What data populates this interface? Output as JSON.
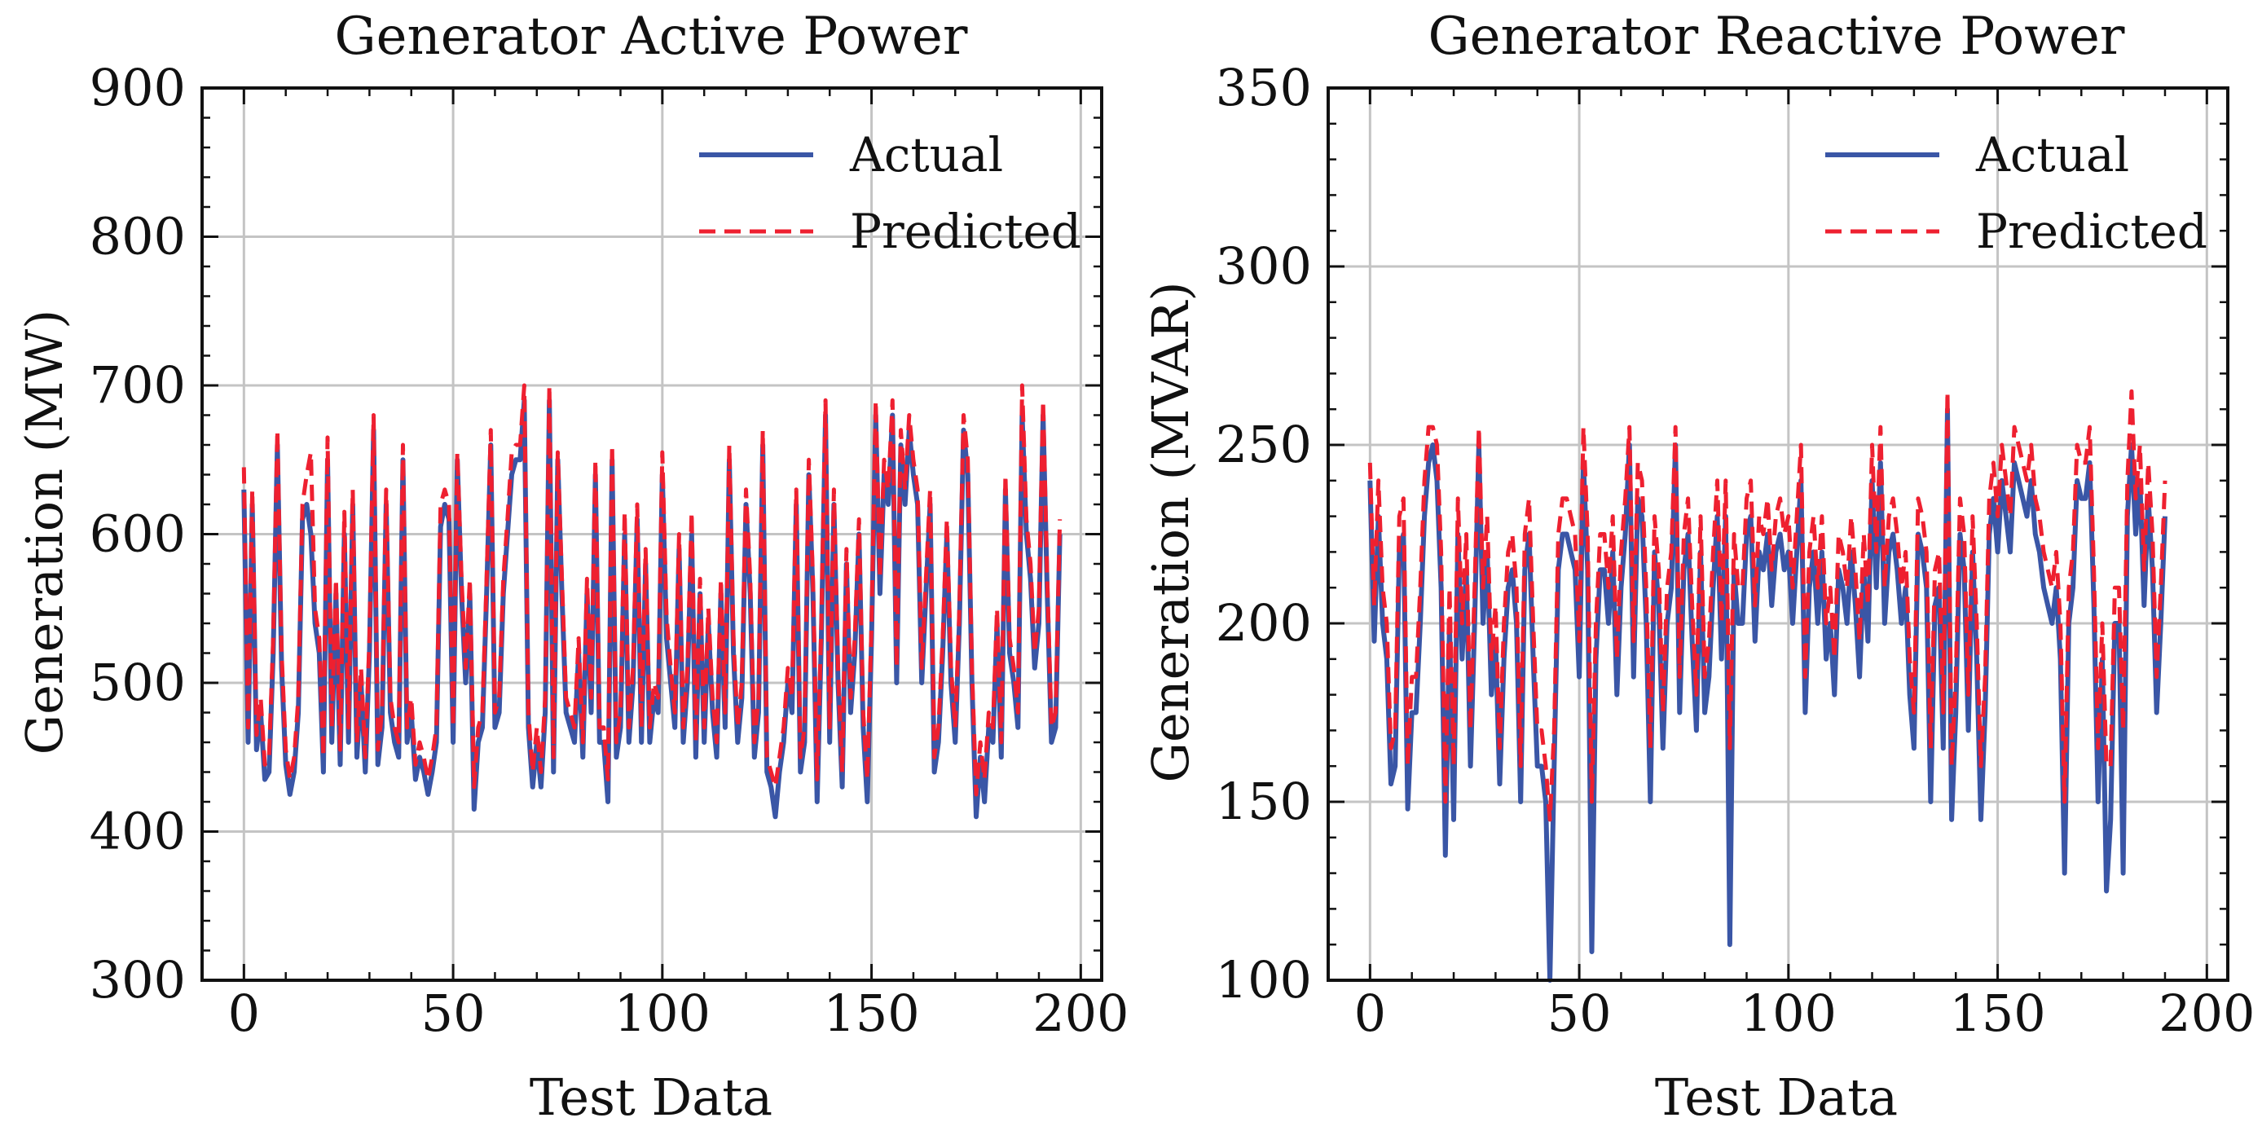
{
  "colors": {
    "actual": "#3a56a6",
    "predicted": "#ee2030",
    "grid": "#c4c4c4",
    "axis": "#111111"
  },
  "chart_data": [
    {
      "type": "line",
      "title": "Generator Active Power",
      "xlabel": "Test Data",
      "ylabel": "Generation (MW)",
      "xlim": [
        -10,
        205
      ],
      "ylim": [
        300,
        900
      ],
      "xticks": [
        0,
        50,
        100,
        150,
        200
      ],
      "yticks": [
        300,
        400,
        500,
        600,
        700,
        800,
        900
      ],
      "xtick_labels": [
        "0",
        "50",
        "100",
        "150",
        "200"
      ],
      "ytick_labels": [
        "300",
        "400",
        "500",
        "600",
        "700",
        "800",
        "900"
      ],
      "grid": true,
      "legend_position": "top-right",
      "legend": [
        "Actual",
        "Predicted"
      ],
      "series": [
        {
          "name": "Actual",
          "style": "solid",
          "values": [
            630,
            460,
            620,
            455,
            480,
            435,
            440,
            520,
            660,
            510,
            445,
            425,
            440,
            480,
            610,
            620,
            600,
            540,
            520,
            440,
            650,
            460,
            560,
            445,
            600,
            460,
            620,
            450,
            500,
            440,
            520,
            670,
            445,
            470,
            620,
            480,
            460,
            450,
            650,
            460,
            480,
            435,
            450,
            440,
            425,
            440,
            460,
            605,
            620,
            610,
            460,
            650,
            560,
            500,
            560,
            415,
            460,
            470,
            560,
            660,
            470,
            480,
            560,
            600,
            640,
            650,
            650,
            690,
            470,
            430,
            460,
            430,
            480,
            690,
            440,
            650,
            560,
            480,
            470,
            460,
            520,
            450,
            560,
            480,
            640,
            460,
            460,
            420,
            650,
            450,
            470,
            600,
            460,
            500,
            610,
            460,
            580,
            460,
            490,
            480,
            640,
            530,
            500,
            470,
            590,
            460,
            500,
            600,
            450,
            560,
            460,
            540,
            480,
            450,
            560,
            470,
            650,
            520,
            460,
            490,
            620,
            560,
            450,
            480,
            660,
            440,
            430,
            410,
            440,
            460,
            500,
            480,
            620,
            440,
            460,
            640,
            560,
            420,
            530,
            680,
            460,
            620,
            500,
            430,
            580,
            480,
            520,
            600,
            470,
            420,
            530,
            680,
            560,
            640,
            620,
            680,
            500,
            660,
            620,
            670,
            640,
            620,
            500,
            560,
            620,
            440,
            460,
            520,
            600,
            500,
            460,
            540,
            670,
            640,
            500,
            410,
            450,
            420,
            470,
            460,
            540,
            450,
            630,
            520,
            500,
            470,
            680,
            600,
            570,
            510,
            540,
            680,
            560,
            460,
            470,
            600
          ],
          "values_note": "estimated readings"
        },
        {
          "name": "Predicted",
          "style": "dashed",
          "values": [
            645,
            470,
            630,
            465,
            490,
            445,
            450,
            530,
            670,
            520,
            455,
            435,
            450,
            490,
            620,
            640,
            655,
            550,
            530,
            450,
            665,
            470,
            570,
            455,
            615,
            470,
            630,
            460,
            510,
            450,
            530,
            680,
            455,
            480,
            630,
            490,
            470,
            460,
            660,
            470,
            490,
            445,
            460,
            450,
            435,
            450,
            470,
            620,
            630,
            620,
            470,
            655,
            570,
            510,
            570,
            430,
            470,
            480,
            570,
            670,
            480,
            490,
            570,
            610,
            655,
            660,
            660,
            700,
            480,
            440,
            470,
            440,
            490,
            700,
            450,
            655,
            570,
            490,
            480,
            470,
            530,
            460,
            570,
            490,
            650,
            470,
            470,
            435,
            660,
            460,
            480,
            615,
            470,
            510,
            620,
            470,
            590,
            470,
            500,
            490,
            655,
            545,
            510,
            480,
            600,
            470,
            510,
            615,
            460,
            570,
            470,
            550,
            490,
            460,
            570,
            480,
            660,
            530,
            470,
            500,
            630,
            570,
            460,
            490,
            670,
            450,
            440,
            430,
            450,
            470,
            510,
            490,
            630,
            450,
            470,
            650,
            570,
            435,
            540,
            690,
            470,
            630,
            510,
            440,
            590,
            490,
            530,
            610,
            480,
            435,
            540,
            690,
            570,
            650,
            630,
            690,
            510,
            670,
            630,
            680,
            650,
            630,
            510,
            570,
            630,
            450,
            470,
            530,
            610,
            510,
            470,
            550,
            680,
            650,
            510,
            425,
            460,
            435,
            480,
            470,
            550,
            460,
            640,
            530,
            510,
            480,
            700,
            610,
            580,
            520,
            550,
            690,
            570,
            470,
            480,
            610
          ]
        }
      ]
    },
    {
      "type": "line",
      "title": "Generator Reactive Power",
      "xlabel": "Test Data",
      "ylabel": "Generation (MVAR)",
      "xlim": [
        -10,
        205
      ],
      "ylim": [
        100,
        350
      ],
      "xticks": [
        0,
        50,
        100,
        150,
        200
      ],
      "yticks": [
        100,
        150,
        200,
        250,
        300,
        350
      ],
      "xtick_labels": [
        "0",
        "50",
        "100",
        "150",
        "200"
      ],
      "ytick_labels": [
        "100",
        "150",
        "200",
        "250",
        "300",
        "350"
      ],
      "grid": true,
      "legend_position": "top-right",
      "legend": [
        "Actual",
        "Predicted"
      ],
      "series": [
        {
          "name": "Actual",
          "style": "solid",
          "values": [
            240,
            195,
            230,
            200,
            190,
            155,
            160,
            220,
            225,
            148,
            175,
            175,
            200,
            230,
            245,
            250,
            240,
            210,
            135,
            200,
            145,
            225,
            190,
            215,
            160,
            200,
            250,
            200,
            220,
            180,
            195,
            155,
            190,
            210,
            215,
            200,
            150,
            215,
            225,
            190,
            160,
            160,
            150,
            100,
            160,
            215,
            225,
            225,
            220,
            215,
            185,
            245,
            215,
            108,
            190,
            215,
            215,
            200,
            220,
            180,
            210,
            225,
            250,
            185,
            235,
            230,
            200,
            150,
            220,
            205,
            165,
            200,
            210,
            250,
            175,
            215,
            225,
            195,
            170,
            220,
            175,
            185,
            210,
            230,
            190,
            230,
            110,
            215,
            200,
            200,
            225,
            230,
            195,
            220,
            215,
            225,
            205,
            220,
            225,
            215,
            220,
            200,
            220,
            240,
            175,
            210,
            220,
            200,
            220,
            190,
            200,
            180,
            215,
            210,
            200,
            220,
            205,
            185,
            215,
            195,
            240,
            210,
            245,
            200,
            220,
            225,
            215,
            200,
            210,
            180,
            165,
            225,
            220,
            210,
            150,
            205,
            210,
            165,
            260,
            145,
            175,
            225,
            215,
            170,
            220,
            190,
            145,
            175,
            225,
            235,
            220,
            240,
            230,
            220,
            245,
            240,
            235,
            230,
            240,
            225,
            220,
            210,
            205,
            200,
            210,
            190,
            130,
            200,
            210,
            240,
            235,
            235,
            245,
            205,
            150,
            190,
            125,
            145,
            200,
            200,
            130,
            230,
            250,
            225,
            240,
            205,
            235,
            215,
            175,
            200,
            230
          ],
          "values_note": "estimated readings"
        },
        {
          "name": "Predicted",
          "style": "dashed",
          "values": [
            245,
            205,
            240,
            210,
            200,
            165,
            170,
            230,
            235,
            160,
            185,
            185,
            210,
            240,
            255,
            255,
            250,
            220,
            150,
            210,
            160,
            235,
            200,
            225,
            170,
            210,
            255,
            210,
            230,
            190,
            205,
            165,
            200,
            220,
            225,
            210,
            160,
            225,
            235,
            200,
            170,
            170,
            160,
            145,
            170,
            225,
            235,
            235,
            230,
            225,
            195,
            255,
            225,
            150,
            200,
            225,
            225,
            210,
            230,
            190,
            220,
            235,
            255,
            195,
            245,
            240,
            210,
            165,
            230,
            215,
            175,
            210,
            220,
            255,
            185,
            225,
            235,
            205,
            180,
            230,
            185,
            195,
            220,
            240,
            200,
            240,
            165,
            225,
            210,
            210,
            235,
            240,
            205,
            230,
            225,
            235,
            215,
            230,
            235,
            225,
            230,
            210,
            230,
            250,
            185,
            220,
            230,
            210,
            230,
            200,
            210,
            190,
            225,
            220,
            210,
            230,
            215,
            195,
            225,
            205,
            250,
            220,
            255,
            210,
            230,
            235,
            225,
            210,
            220,
            190,
            175,
            235,
            230,
            220,
            165,
            215,
            220,
            175,
            265,
            160,
            185,
            235,
            225,
            180,
            230,
            200,
            160,
            185,
            235,
            245,
            230,
            250,
            240,
            230,
            255,
            250,
            245,
            240,
            250,
            235,
            230,
            220,
            215,
            210,
            220,
            200,
            150,
            210,
            220,
            250,
            245,
            245,
            255,
            215,
            165,
            200,
            160,
            160,
            210,
            210,
            170,
            240,
            265,
            235,
            250,
            215,
            245,
            225,
            185,
            210,
            240
          ]
        }
      ]
    }
  ]
}
